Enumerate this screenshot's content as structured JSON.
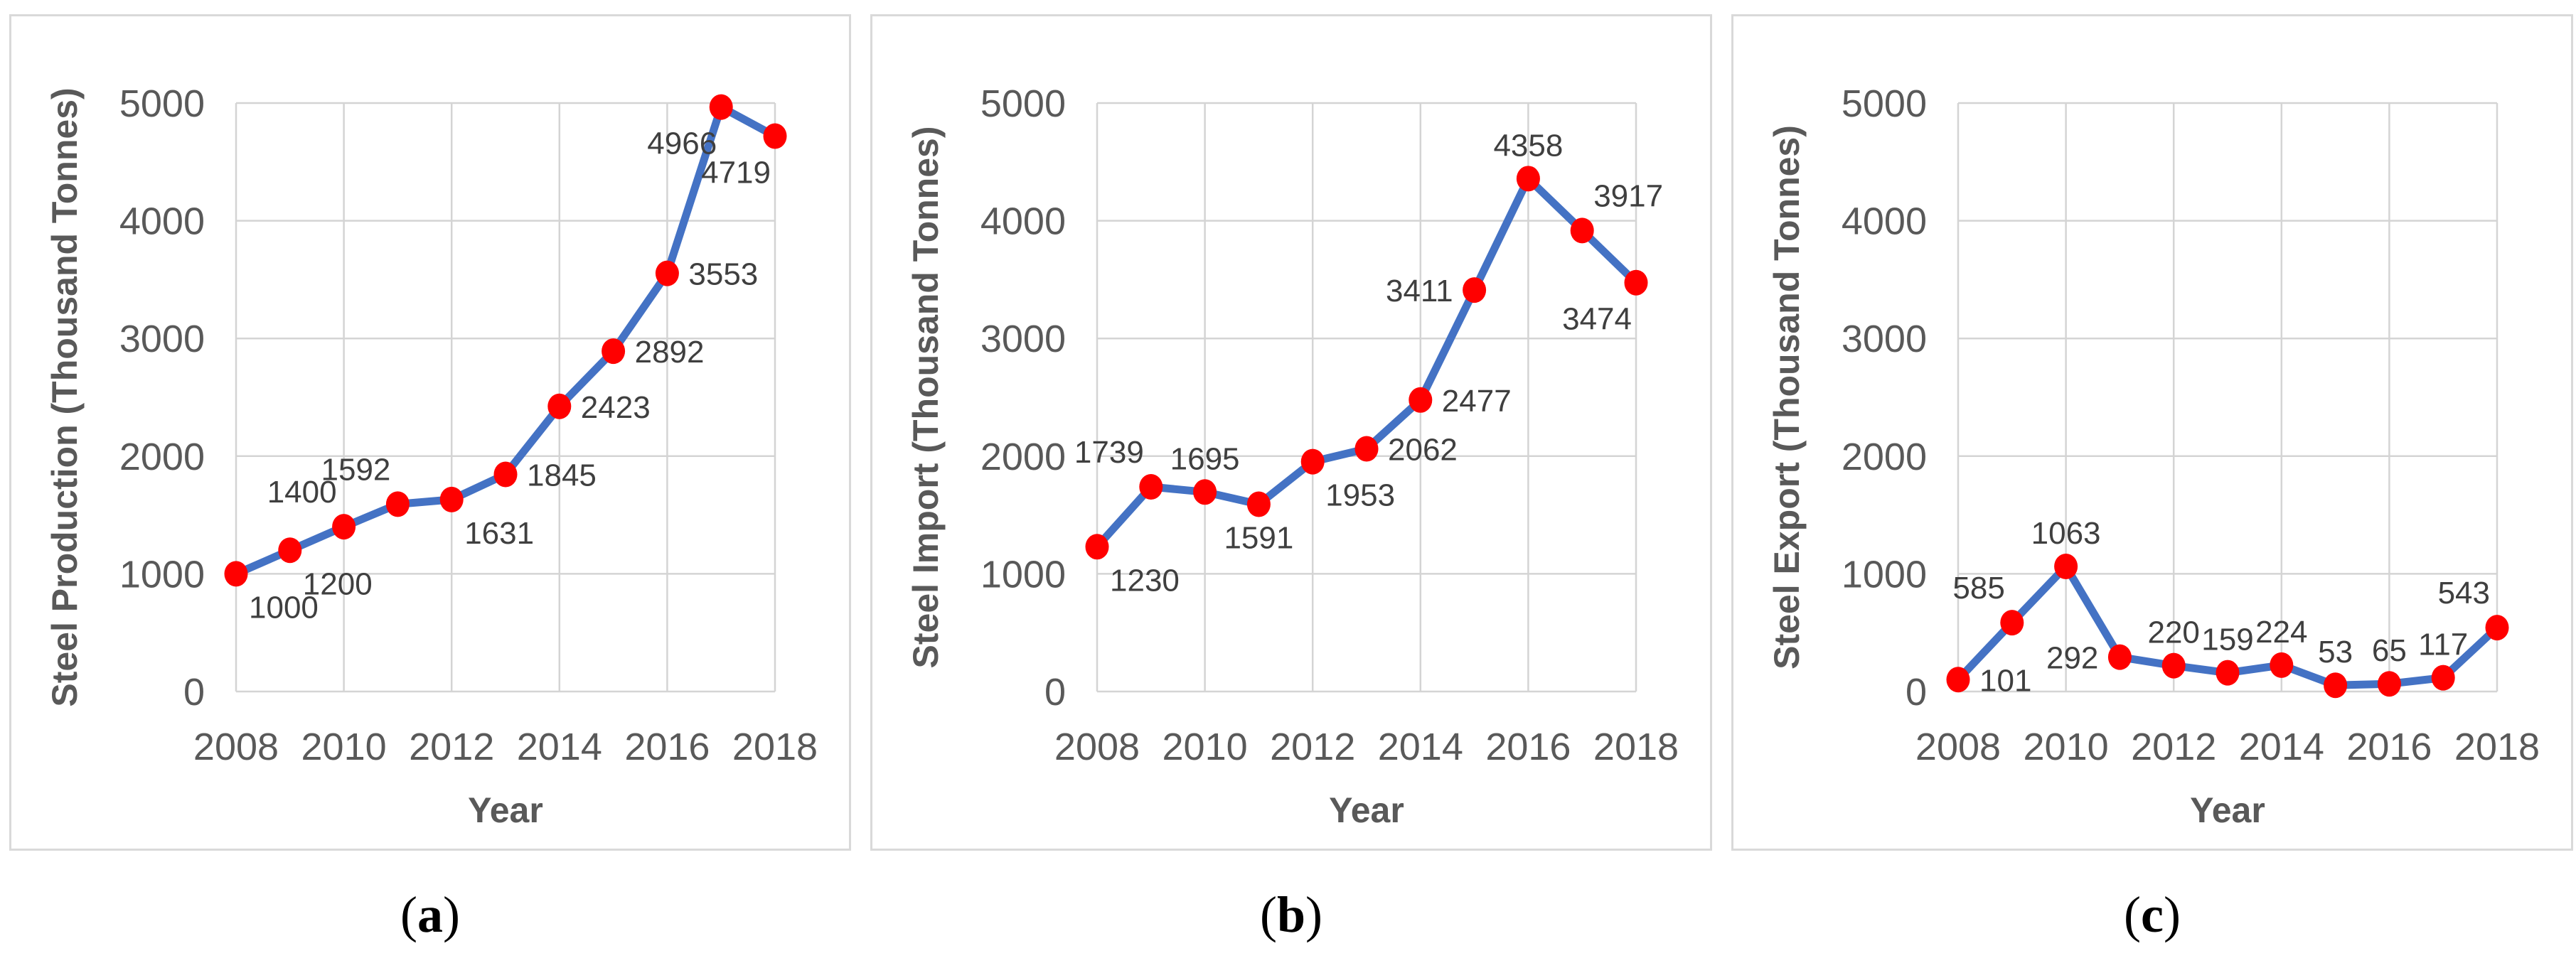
{
  "figure": {
    "captions": [
      {
        "open": "(",
        "letter": "a",
        "close": ")"
      },
      {
        "open": "(",
        "letter": "b",
        "close": ")"
      },
      {
        "open": "(",
        "letter": "c",
        "close": ")"
      }
    ]
  },
  "colors": {
    "line": "#4472C4",
    "marker": "#FF0000",
    "grid": "#D4D4D4",
    "panel_border": "#D9D9D9",
    "tick_text": "#595959",
    "axis_title_text": "#595959",
    "data_label_text": "#3F3F3F",
    "caption_text": "#000000"
  },
  "chart_data": [
    {
      "type": "line",
      "xlabel": "Year",
      "ylabel": "Steel Production (Thousand Tonnes)",
      "x": [
        2008,
        2009,
        2010,
        2011,
        2012,
        2013,
        2014,
        2015,
        2016,
        2017,
        2018
      ],
      "values": [
        1000,
        1200,
        1400,
        1592,
        1631,
        1845,
        2423,
        2892,
        3553,
        4966,
        4719
      ],
      "ylim": [
        0,
        5000
      ],
      "ytick_step": 1000,
      "xticks": [
        2008,
        2010,
        2012,
        2014,
        2016,
        2018
      ],
      "grid": true,
      "legend": "none",
      "label_positions": [
        "below-right",
        "below-right",
        "above-left",
        "above-left",
        "below-right",
        "right",
        "right",
        "right",
        "right",
        "below-left",
        "below-left"
      ]
    },
    {
      "type": "line",
      "xlabel": "Year",
      "ylabel": "Steel Import (Thousand Tonnes)",
      "x": [
        2008,
        2009,
        2010,
        2011,
        2012,
        2013,
        2014,
        2015,
        2016,
        2017,
        2018
      ],
      "values": [
        1230,
        1739,
        1695,
        1591,
        1953,
        2062,
        2477,
        3411,
        4358,
        3917,
        3474
      ],
      "ylim": [
        0,
        5000
      ],
      "ytick_step": 1000,
      "xticks": [
        2008,
        2010,
        2012,
        2014,
        2016,
        2018
      ],
      "grid": true,
      "legend": "none",
      "label_positions": [
        "below-right",
        "above-left",
        "above",
        "below",
        "below-right",
        "right",
        "right",
        "left",
        "above",
        "above-right",
        "below-left"
      ]
    },
    {
      "type": "line",
      "xlabel": "Year",
      "ylabel": "Steel Export (Thousand Tonnes)",
      "x": [
        2008,
        2009,
        2010,
        2011,
        2012,
        2013,
        2014,
        2015,
        2016,
        2017,
        2018
      ],
      "values": [
        101,
        585,
        1063,
        292,
        220,
        159,
        224,
        53,
        65,
        117,
        543
      ],
      "ylim": [
        0,
        5000
      ],
      "ytick_step": 1000,
      "xticks": [
        2008,
        2010,
        2012,
        2014,
        2016,
        2018
      ],
      "grid": true,
      "legend": "none",
      "label_positions": [
        "right",
        "above-left",
        "above",
        "left",
        "above",
        "above",
        "above",
        "above",
        "above",
        "above",
        "above-left"
      ]
    }
  ]
}
